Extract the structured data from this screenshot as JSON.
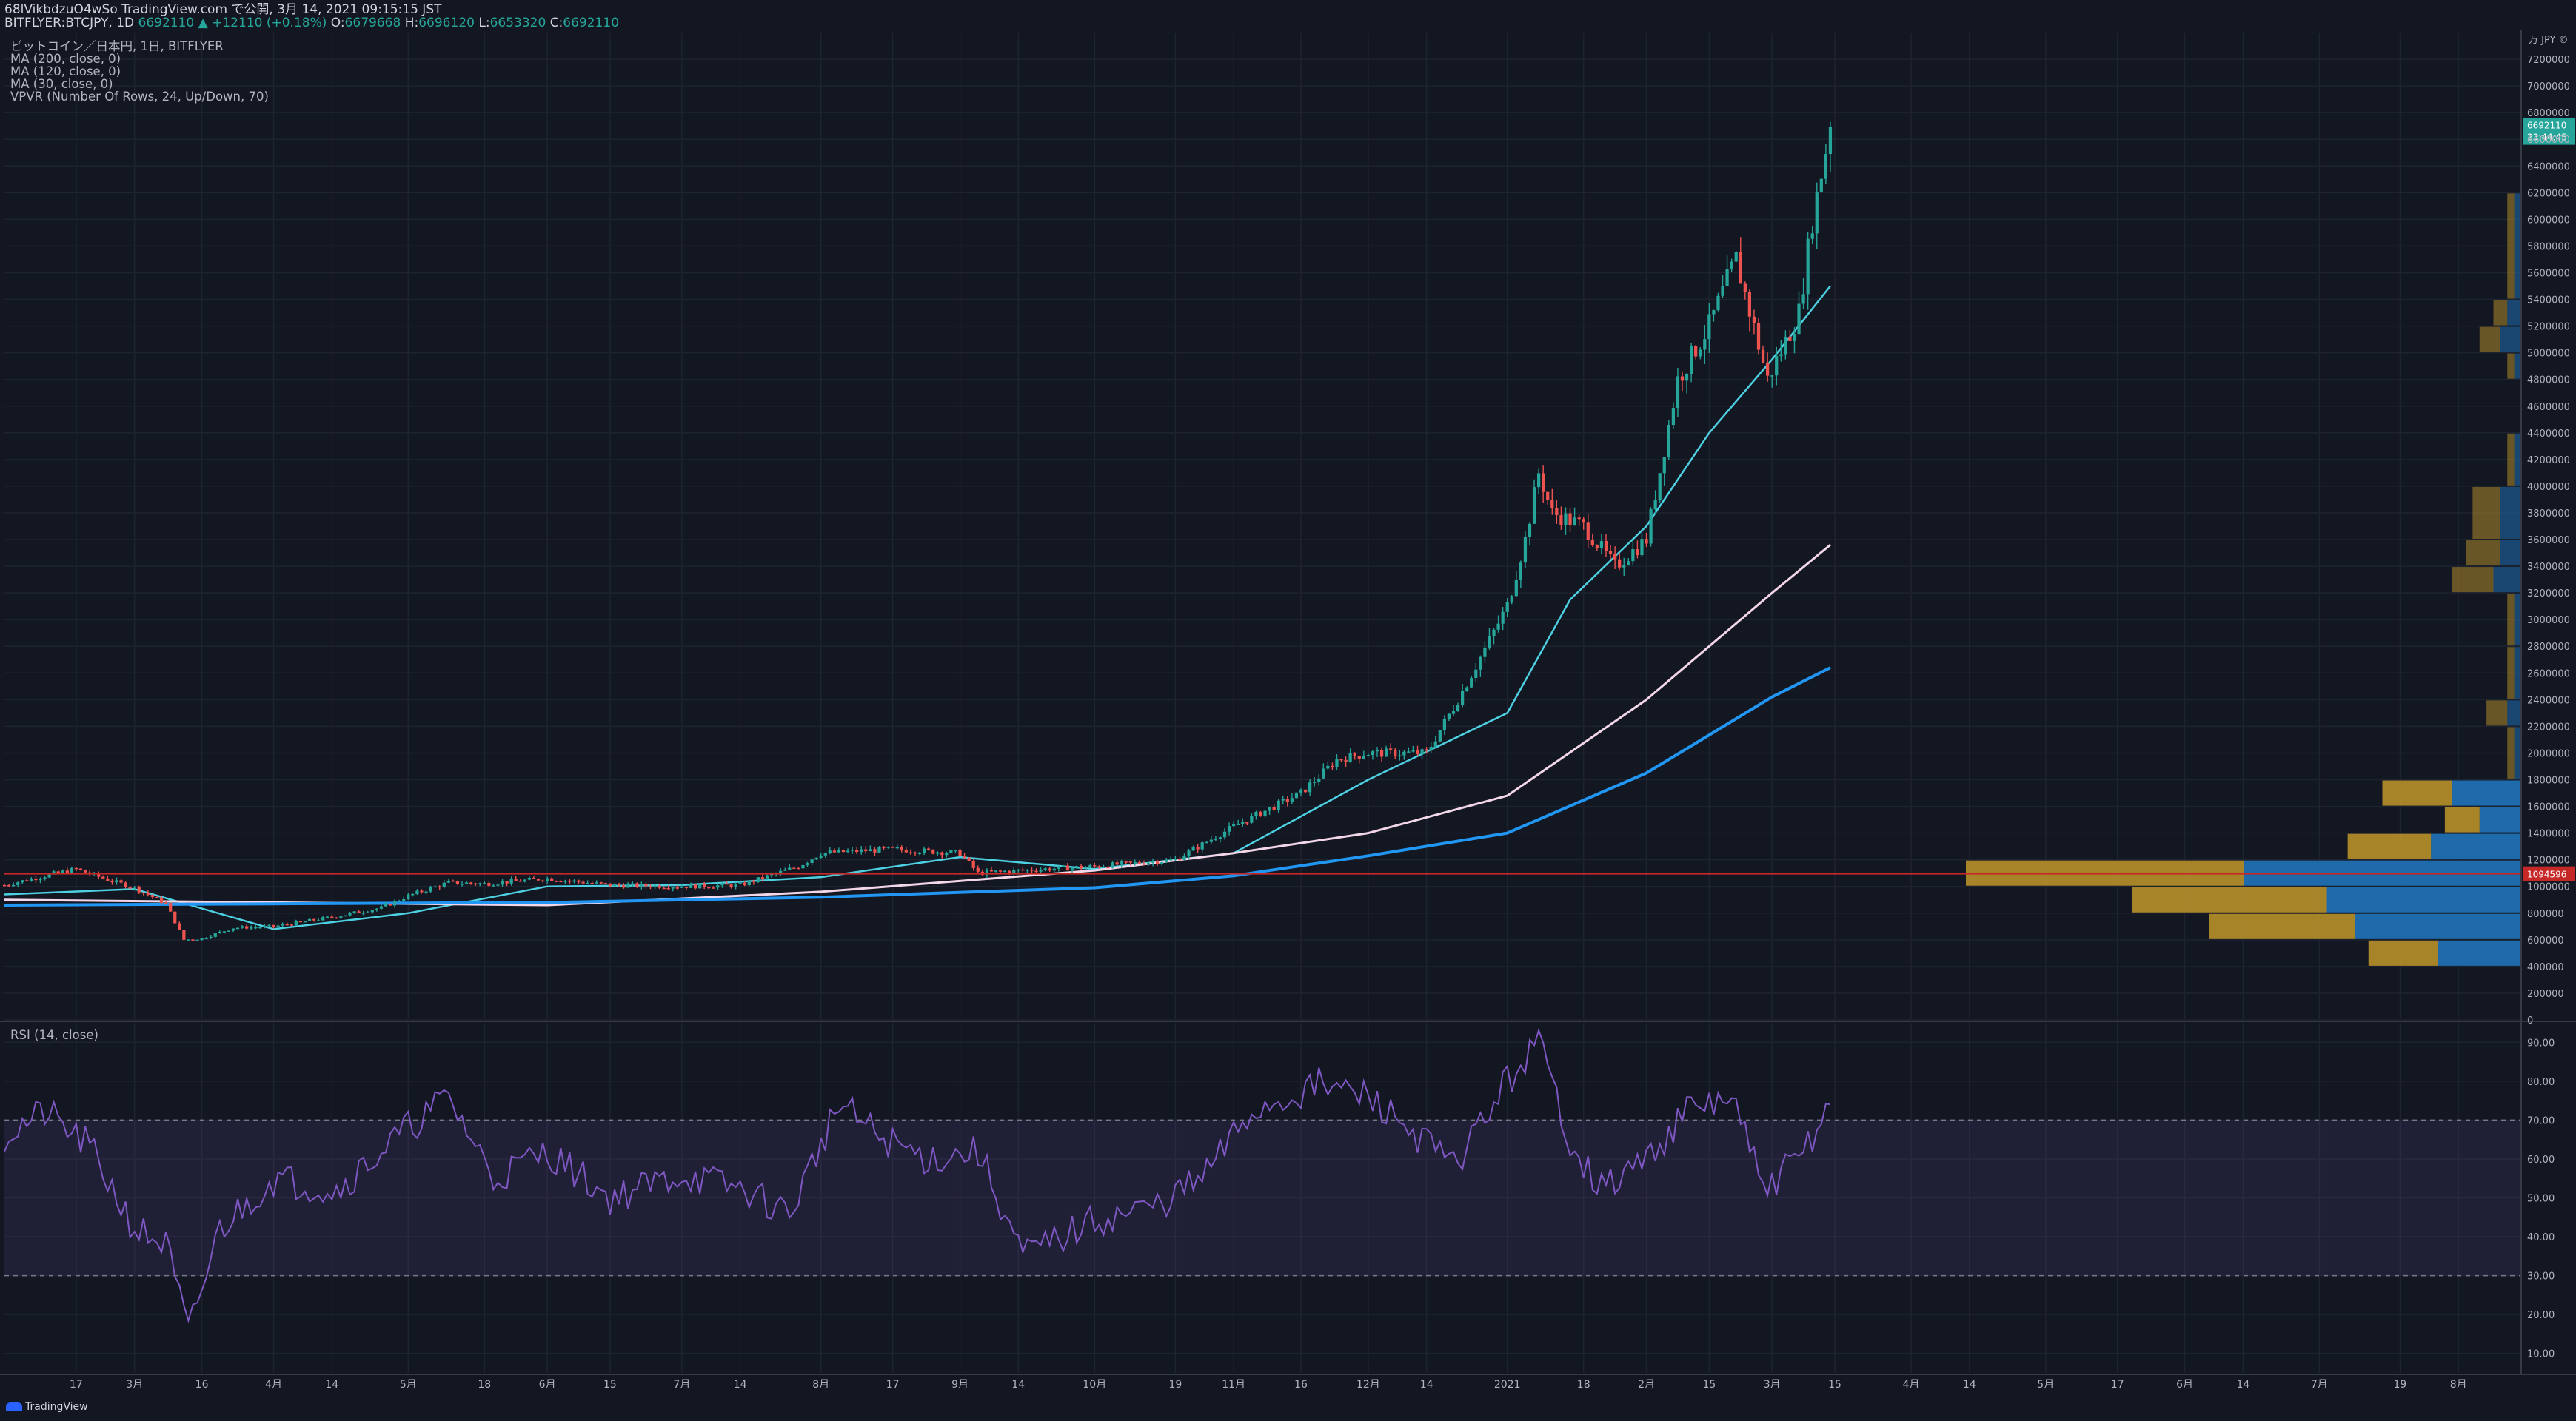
{
  "header": {
    "line1": "68lVikbdzuO4wSo TradingView.com で公開, 3月 14, 2021 09:15:15 JST",
    "symbol": "BITFLYER:BTCJPY, 1D",
    "last": "6692110",
    "change": "+12110 (+0.18%)",
    "o_label": "O:",
    "o": "6679668",
    "h_label": "H:",
    "h": "6696120",
    "l_label": "L:",
    "l": "6653320",
    "c_label": "C:",
    "c": "6692110"
  },
  "legend": {
    "main": "ビットコイン／日本円, 1日, BITFLYER",
    "ma200": "MA (200, close, 0)",
    "ma120": "MA (120, close, 0)",
    "ma30": "MA (30, close, 0)",
    "vpvr": "VPVR (Number Of Rows, 24, Up/Down, 70)"
  },
  "rsi_label": "RSI (14, close)",
  "currency_label": "万 JPY ©",
  "brand": "TradingView",
  "colors": {
    "background": "#131722",
    "up": "#26a69a",
    "down": "#ef5350",
    "ma30": "#4dd0e1",
    "ma120": "#f3d7e9",
    "ma200": "#2196f3",
    "rsi": "#7e57c2",
    "vpvr_up": "#1f6fb3",
    "vpvr_down": "#b08a2a",
    "poc_line": "#c62828"
  },
  "chart_data": [
    {
      "type": "candlestick",
      "title": "ビットコイン／日本円, 1日, BITFLYER",
      "currency": "JPY",
      "ylim": [
        0,
        7400000
      ],
      "y_ticks": [
        0,
        200000,
        400000,
        600000,
        800000,
        1000000,
        1200000,
        1400000,
        1600000,
        1800000,
        2000000,
        2200000,
        2400000,
        2600000,
        2800000,
        3000000,
        3200000,
        3400000,
        3600000,
        3800000,
        4000000,
        4200000,
        4400000,
        4600000,
        4800000,
        5000000,
        5200000,
        5400000,
        5600000,
        5800000,
        6000000,
        6200000,
        6400000,
        6600000,
        6800000,
        7000000,
        7200000
      ],
      "x_range": [
        "2020-02-01",
        "2021-08-15"
      ],
      "x_ticks": [
        {
          "date": "2020-02-17",
          "label": "17"
        },
        {
          "date": "2020-03-01",
          "label": "3月"
        },
        {
          "date": "2020-03-16",
          "label": "16"
        },
        {
          "date": "2020-04-01",
          "label": "4月"
        },
        {
          "date": "2020-04-14",
          "label": "14"
        },
        {
          "date": "2020-05-01",
          "label": "5月"
        },
        {
          "date": "2020-05-18",
          "label": "18"
        },
        {
          "date": "2020-06-01",
          "label": "6月"
        },
        {
          "date": "2020-06-15",
          "label": "15"
        },
        {
          "date": "2020-07-01",
          "label": "7月"
        },
        {
          "date": "2020-07-14",
          "label": "14"
        },
        {
          "date": "2020-08-01",
          "label": "8月"
        },
        {
          "date": "2020-08-17",
          "label": "17"
        },
        {
          "date": "2020-09-01",
          "label": "9月"
        },
        {
          "date": "2020-09-14",
          "label": "14"
        },
        {
          "date": "2020-10-01",
          "label": "10月"
        },
        {
          "date": "2020-10-19",
          "label": "19"
        },
        {
          "date": "2020-11-01",
          "label": "11月"
        },
        {
          "date": "2020-11-16",
          "label": "16"
        },
        {
          "date": "2020-12-01",
          "label": "12月"
        },
        {
          "date": "2020-12-14",
          "label": "14"
        },
        {
          "date": "2021-01-01",
          "label": "2021"
        },
        {
          "date": "2021-01-18",
          "label": "18"
        },
        {
          "date": "2021-02-01",
          "label": "2月"
        },
        {
          "date": "2021-02-15",
          "label": "15"
        },
        {
          "date": "2021-03-01",
          "label": "3月"
        },
        {
          "date": "2021-03-15",
          "label": "15"
        },
        {
          "date": "2021-04-01",
          "label": "4月"
        },
        {
          "date": "2021-04-14",
          "label": "14"
        },
        {
          "date": "2021-05-01",
          "label": "5月"
        },
        {
          "date": "2021-05-17",
          "label": "17"
        },
        {
          "date": "2021-06-01",
          "label": "6月"
        },
        {
          "date": "2021-06-14",
          "label": "14"
        },
        {
          "date": "2021-07-01",
          "label": "7月"
        },
        {
          "date": "2021-07-19",
          "label": "19"
        },
        {
          "date": "2021-08-01",
          "label": "8月"
        }
      ],
      "close_series": {
        "dates": [
          "2020-02-01",
          "2020-02-10",
          "2020-02-17",
          "2020-02-24",
          "2020-03-01",
          "2020-03-08",
          "2020-03-12",
          "2020-03-16",
          "2020-03-23",
          "2020-04-01",
          "2020-04-14",
          "2020-04-25",
          "2020-05-01",
          "2020-05-10",
          "2020-05-18",
          "2020-06-01",
          "2020-06-15",
          "2020-07-01",
          "2020-07-14",
          "2020-07-27",
          "2020-08-01",
          "2020-08-17",
          "2020-09-01",
          "2020-09-05",
          "2020-09-14",
          "2020-10-01",
          "2020-10-19",
          "2020-11-01",
          "2020-11-16",
          "2020-11-24",
          "2020-12-01",
          "2020-12-14",
          "2020-12-21",
          "2021-01-01",
          "2021-01-05",
          "2021-01-08",
          "2021-01-11",
          "2021-01-18",
          "2021-01-25",
          "2021-02-01",
          "2021-02-08",
          "2021-02-15",
          "2021-02-21",
          "2021-02-28",
          "2021-03-07",
          "2021-03-10",
          "2021-03-14"
        ],
        "values": [
          1010000,
          1080000,
          1130000,
          1050000,
          990000,
          870000,
          600000,
          610000,
          690000,
          700000,
          770000,
          840000,
          930000,
          1030000,
          1020000,
          1060000,
          1010000,
          1000000,
          1010000,
          1150000,
          1250000,
          1280000,
          1250000,
          1100000,
          1120000,
          1150000,
          1200000,
          1450000,
          1700000,
          1950000,
          2000000,
          2000000,
          2400000,
          3100000,
          3600000,
          4100000,
          3800000,
          3700000,
          3400000,
          3600000,
          4800000,
          5200000,
          5700000,
          4800000,
          5300000,
          6000000,
          6692110
        ]
      },
      "last_price": "6692110",
      "last_price_countdown": "23:44:45",
      "poc_price": "1094596",
      "moving_averages": [
        {
          "name": "MA (30, close, 0)",
          "dates": [
            "2020-02-01",
            "2020-03-01",
            "2020-04-01",
            "2020-05-01",
            "2020-06-01",
            "2020-07-01",
            "2020-08-01",
            "2020-09-01",
            "2020-10-01",
            "2020-11-01",
            "2020-12-01",
            "2021-01-01",
            "2021-01-15",
            "2021-02-01",
            "2021-02-15",
            "2021-03-01",
            "2021-03-14"
          ],
          "values": [
            940000,
            980000,
            680000,
            800000,
            1000000,
            1010000,
            1070000,
            1220000,
            1130000,
            1250000,
            1800000,
            2300000,
            3150000,
            3700000,
            4400000,
            4950000,
            5500000
          ]
        },
        {
          "name": "MA (120, close, 0)",
          "dates": [
            "2020-02-01",
            "2020-04-01",
            "2020-06-01",
            "2020-08-01",
            "2020-10-01",
            "2020-11-01",
            "2020-12-01",
            "2021-01-01",
            "2021-02-01",
            "2021-03-01",
            "2021-03-14"
          ],
          "values": [
            900000,
            880000,
            860000,
            960000,
            1120000,
            1250000,
            1400000,
            1680000,
            2400000,
            3200000,
            3560000
          ]
        },
        {
          "name": "MA (200, close, 0)",
          "dates": [
            "2020-02-01",
            "2020-04-01",
            "2020-06-01",
            "2020-08-01",
            "2020-10-01",
            "2020-11-01",
            "2020-12-01",
            "2021-01-01",
            "2021-02-01",
            "2021-03-01",
            "2021-03-14"
          ],
          "values": [
            860000,
            870000,
            880000,
            920000,
            990000,
            1080000,
            1230000,
            1400000,
            1850000,
            2420000,
            2640000
          ]
        }
      ],
      "vpvr": {
        "row_size": 200000,
        "rows": [
          {
            "from": 400000,
            "to": 600000,
            "up": 1.2,
            "down": 1.0
          },
          {
            "from": 600000,
            "to": 800000,
            "up": 2.4,
            "down": 2.1
          },
          {
            "from": 800000,
            "to": 1000000,
            "up": 2.8,
            "down": 2.8
          },
          {
            "from": 1000000,
            "to": 1200000,
            "up": 4.0,
            "down": 4.0
          },
          {
            "from": 1200000,
            "to": 1400000,
            "up": 1.3,
            "down": 1.2
          },
          {
            "from": 1400000,
            "to": 1600000,
            "up": 0.6,
            "down": 0.5
          },
          {
            "from": 1600000,
            "to": 1800000,
            "up": 1.0,
            "down": 1.0
          },
          {
            "from": 1800000,
            "to": 2200000,
            "up": 0.1,
            "down": 0.1
          },
          {
            "from": 2200000,
            "to": 2400000,
            "up": 0.2,
            "down": 0.3
          },
          {
            "from": 2400000,
            "to": 2800000,
            "up": 0.1,
            "down": 0.1
          },
          {
            "from": 2800000,
            "to": 3200000,
            "up": 0.1,
            "down": 0.1
          },
          {
            "from": 3200000,
            "to": 3400000,
            "up": 0.4,
            "down": 0.6
          },
          {
            "from": 3400000,
            "to": 3600000,
            "up": 0.3,
            "down": 0.5
          },
          {
            "from": 3600000,
            "to": 4000000,
            "up": 0.3,
            "down": 0.4
          },
          {
            "from": 4000000,
            "to": 4400000,
            "up": 0.1,
            "down": 0.1
          },
          {
            "from": 4800000,
            "to": 5000000,
            "up": 0.1,
            "down": 0.1
          },
          {
            "from": 5000000,
            "to": 5200000,
            "up": 0.3,
            "down": 0.3
          },
          {
            "from": 5200000,
            "to": 5400000,
            "up": 0.2,
            "down": 0.2
          },
          {
            "from": 5400000,
            "to": 6200000,
            "up": 0.1,
            "down": 0.1
          }
        ]
      }
    },
    {
      "type": "line",
      "title": "RSI (14, close)",
      "ylim": [
        5,
        95
      ],
      "y_ticks": [
        10,
        20,
        30,
        40,
        50,
        60,
        70,
        80,
        90
      ],
      "y_tick_labels": [
        "10.00",
        "20.00",
        "30.00",
        "40.00",
        "50.00",
        "60.00",
        "70.00",
        "80.00",
        "90.00"
      ],
      "bands": [
        30,
        70
      ],
      "series": {
        "dates": [
          "2020-02-01",
          "2020-02-10",
          "2020-02-20",
          "2020-03-01",
          "2020-03-08",
          "2020-03-13",
          "2020-03-20",
          "2020-04-01",
          "2020-04-15",
          "2020-05-01",
          "2020-05-10",
          "2020-05-20",
          "2020-06-01",
          "2020-06-15",
          "2020-07-01",
          "2020-07-15",
          "2020-07-25",
          "2020-08-05",
          "2020-08-15",
          "2020-08-25",
          "2020-09-05",
          "2020-09-15",
          "2020-10-01",
          "2020-10-15",
          "2020-10-25",
          "2020-11-05",
          "2020-11-20",
          "2020-12-01",
          "2020-12-10",
          "2020-12-20",
          "2021-01-01",
          "2021-01-08",
          "2021-01-15",
          "2021-01-22",
          "2021-02-01",
          "2021-02-10",
          "2021-02-20",
          "2021-02-27",
          "2021-03-07",
          "2021-03-14"
        ],
        "values": [
          66,
          72,
          63,
          42,
          38,
          15,
          42,
          55,
          52,
          68,
          76,
          55,
          62,
          50,
          56,
          52,
          46,
          74,
          65,
          60,
          62,
          35,
          44,
          48,
          55,
          72,
          79,
          76,
          68,
          58,
          80,
          90,
          65,
          52,
          60,
          72,
          76,
          52,
          60,
          74
        ]
      }
    }
  ]
}
